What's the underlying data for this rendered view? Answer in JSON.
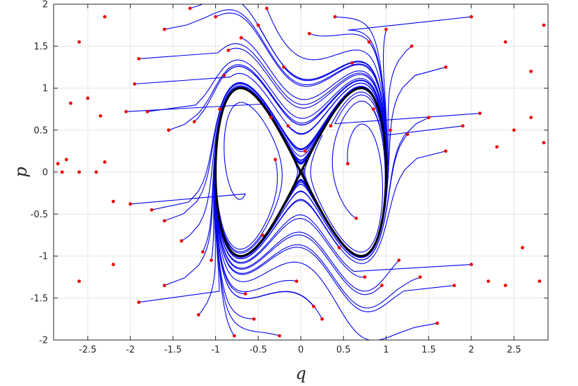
{
  "chart_data": {
    "type": "line",
    "title": "",
    "xlabel": "q",
    "ylabel": "p",
    "xlim": [
      -2.9,
      2.9
    ],
    "ylim": [
      -2,
      2
    ],
    "grid": true,
    "box": true,
    "xticks": [
      -2.5,
      -2,
      -1.5,
      -1,
      -0.5,
      0,
      0.5,
      1,
      1.5,
      2,
      2.5
    ],
    "xtick_labels": [
      "-2.5",
      "-2",
      "-1.5",
      "-1",
      "-0.5",
      "0",
      "0.5",
      "1",
      "1.5",
      "2",
      "2.5"
    ],
    "yticks": [
      -2,
      -1.5,
      -1,
      -0.5,
      0,
      0.5,
      1,
      1.5,
      2
    ],
    "ytick_labels": [
      "-2",
      "-1.5",
      "-1",
      "-0.5",
      "0",
      "0.5",
      "1",
      "1.5",
      "2"
    ],
    "colors": {
      "trajectory": "#0000ee",
      "initial_point": "#ee0000",
      "invariant_curve": "#000000",
      "grid": "#e6e6e6",
      "axes": "#262626"
    },
    "invariant_curve": {
      "equation": "p^2 = 4 q^2 (1 - q^2)",
      "q_extent": [
        -1,
        1
      ],
      "p_extent": [
        -1,
        1
      ]
    },
    "initial_points": [
      [
        -2.85,
        0.1
      ],
      [
        -2.8,
        0.0
      ],
      [
        -2.75,
        0.15
      ],
      [
        -2.7,
        0.82
      ],
      [
        -2.6,
        0.0
      ],
      [
        -2.5,
        0.88
      ],
      [
        -2.4,
        0.0
      ],
      [
        -2.35,
        0.67
      ],
      [
        -2.3,
        0.12
      ],
      [
        -2.2,
        -0.35
      ],
      [
        -2.05,
        0.72
      ],
      [
        -2.0,
        -0.38
      ],
      [
        -1.95,
        1.05
      ],
      [
        -1.8,
        0.72
      ],
      [
        -1.75,
        -0.45
      ],
      [
        -1.6,
        -0.58
      ],
      [
        -1.55,
        0.5
      ],
      [
        -1.4,
        -0.82
      ],
      [
        -1.25,
        0.6
      ],
      [
        -1.15,
        -0.95
      ],
      [
        -1.05,
        -1.05
      ],
      [
        -0.95,
        0.75
      ],
      [
        -0.85,
        1.45
      ],
      [
        -0.78,
        -1.95
      ],
      [
        -0.65,
        -1.45
      ],
      [
        -0.55,
        -1.75
      ],
      [
        -0.45,
        -0.75
      ],
      [
        -0.35,
        0.65
      ],
      [
        -0.3,
        0.15
      ],
      [
        -0.25,
        -1.95
      ],
      [
        -0.15,
        0.55
      ],
      [
        -0.05,
        -1.3
      ],
      [
        0.05,
        0.25
      ],
      [
        0.15,
        -1.6
      ],
      [
        0.25,
        -1.75
      ],
      [
        0.35,
        0.55
      ],
      [
        0.45,
        -0.9
      ],
      [
        0.55,
        0.1
      ],
      [
        0.65,
        -0.55
      ],
      [
        0.75,
        -1.25
      ],
      [
        0.85,
        0.75
      ],
      [
        0.95,
        -1.35
      ],
      [
        1.05,
        0.5
      ],
      [
        1.15,
        -1.05
      ],
      [
        1.25,
        0.45
      ],
      [
        1.4,
        -1.25
      ],
      [
        1.5,
        0.65
      ],
      [
        1.6,
        -1.8
      ],
      [
        1.7,
        0.25
      ],
      [
        1.8,
        -1.35
      ],
      [
        1.9,
        0.55
      ],
      [
        2.0,
        -1.1
      ],
      [
        2.1,
        0.7
      ],
      [
        2.2,
        -1.3
      ],
      [
        2.3,
        0.3
      ],
      [
        2.4,
        -1.35
      ],
      [
        2.5,
        0.5
      ],
      [
        2.6,
        -0.9
      ],
      [
        2.7,
        0.65
      ],
      [
        2.8,
        -1.3
      ],
      [
        2.85,
        0.35
      ],
      [
        -2.6,
        -1.3
      ],
      [
        -2.2,
        -1.1
      ],
      [
        -1.9,
        -1.55
      ],
      [
        -1.6,
        -1.35
      ],
      [
        -1.2,
        -1.7
      ],
      [
        -0.9,
        1.15
      ],
      [
        -0.5,
        1.75
      ],
      [
        -0.2,
        1.25
      ],
      [
        0.1,
        1.65
      ],
      [
        0.4,
        1.85
      ],
      [
        0.6,
        1.3
      ],
      [
        0.8,
        1.55
      ],
      [
        1.0,
        1.7
      ],
      [
        1.3,
        1.5
      ],
      [
        1.7,
        1.25
      ],
      [
        2.0,
        1.85
      ],
      [
        2.4,
        1.55
      ],
      [
        2.7,
        1.2
      ],
      [
        2.85,
        1.75
      ],
      [
        -2.6,
        1.55
      ],
      [
        -2.3,
        1.85
      ],
      [
        -1.9,
        1.35
      ],
      [
        -1.6,
        1.7
      ],
      [
        -1.3,
        1.95
      ],
      [
        -1.0,
        1.85
      ],
      [
        -0.7,
        1.6
      ],
      [
        -0.4,
        1.95
      ]
    ]
  }
}
